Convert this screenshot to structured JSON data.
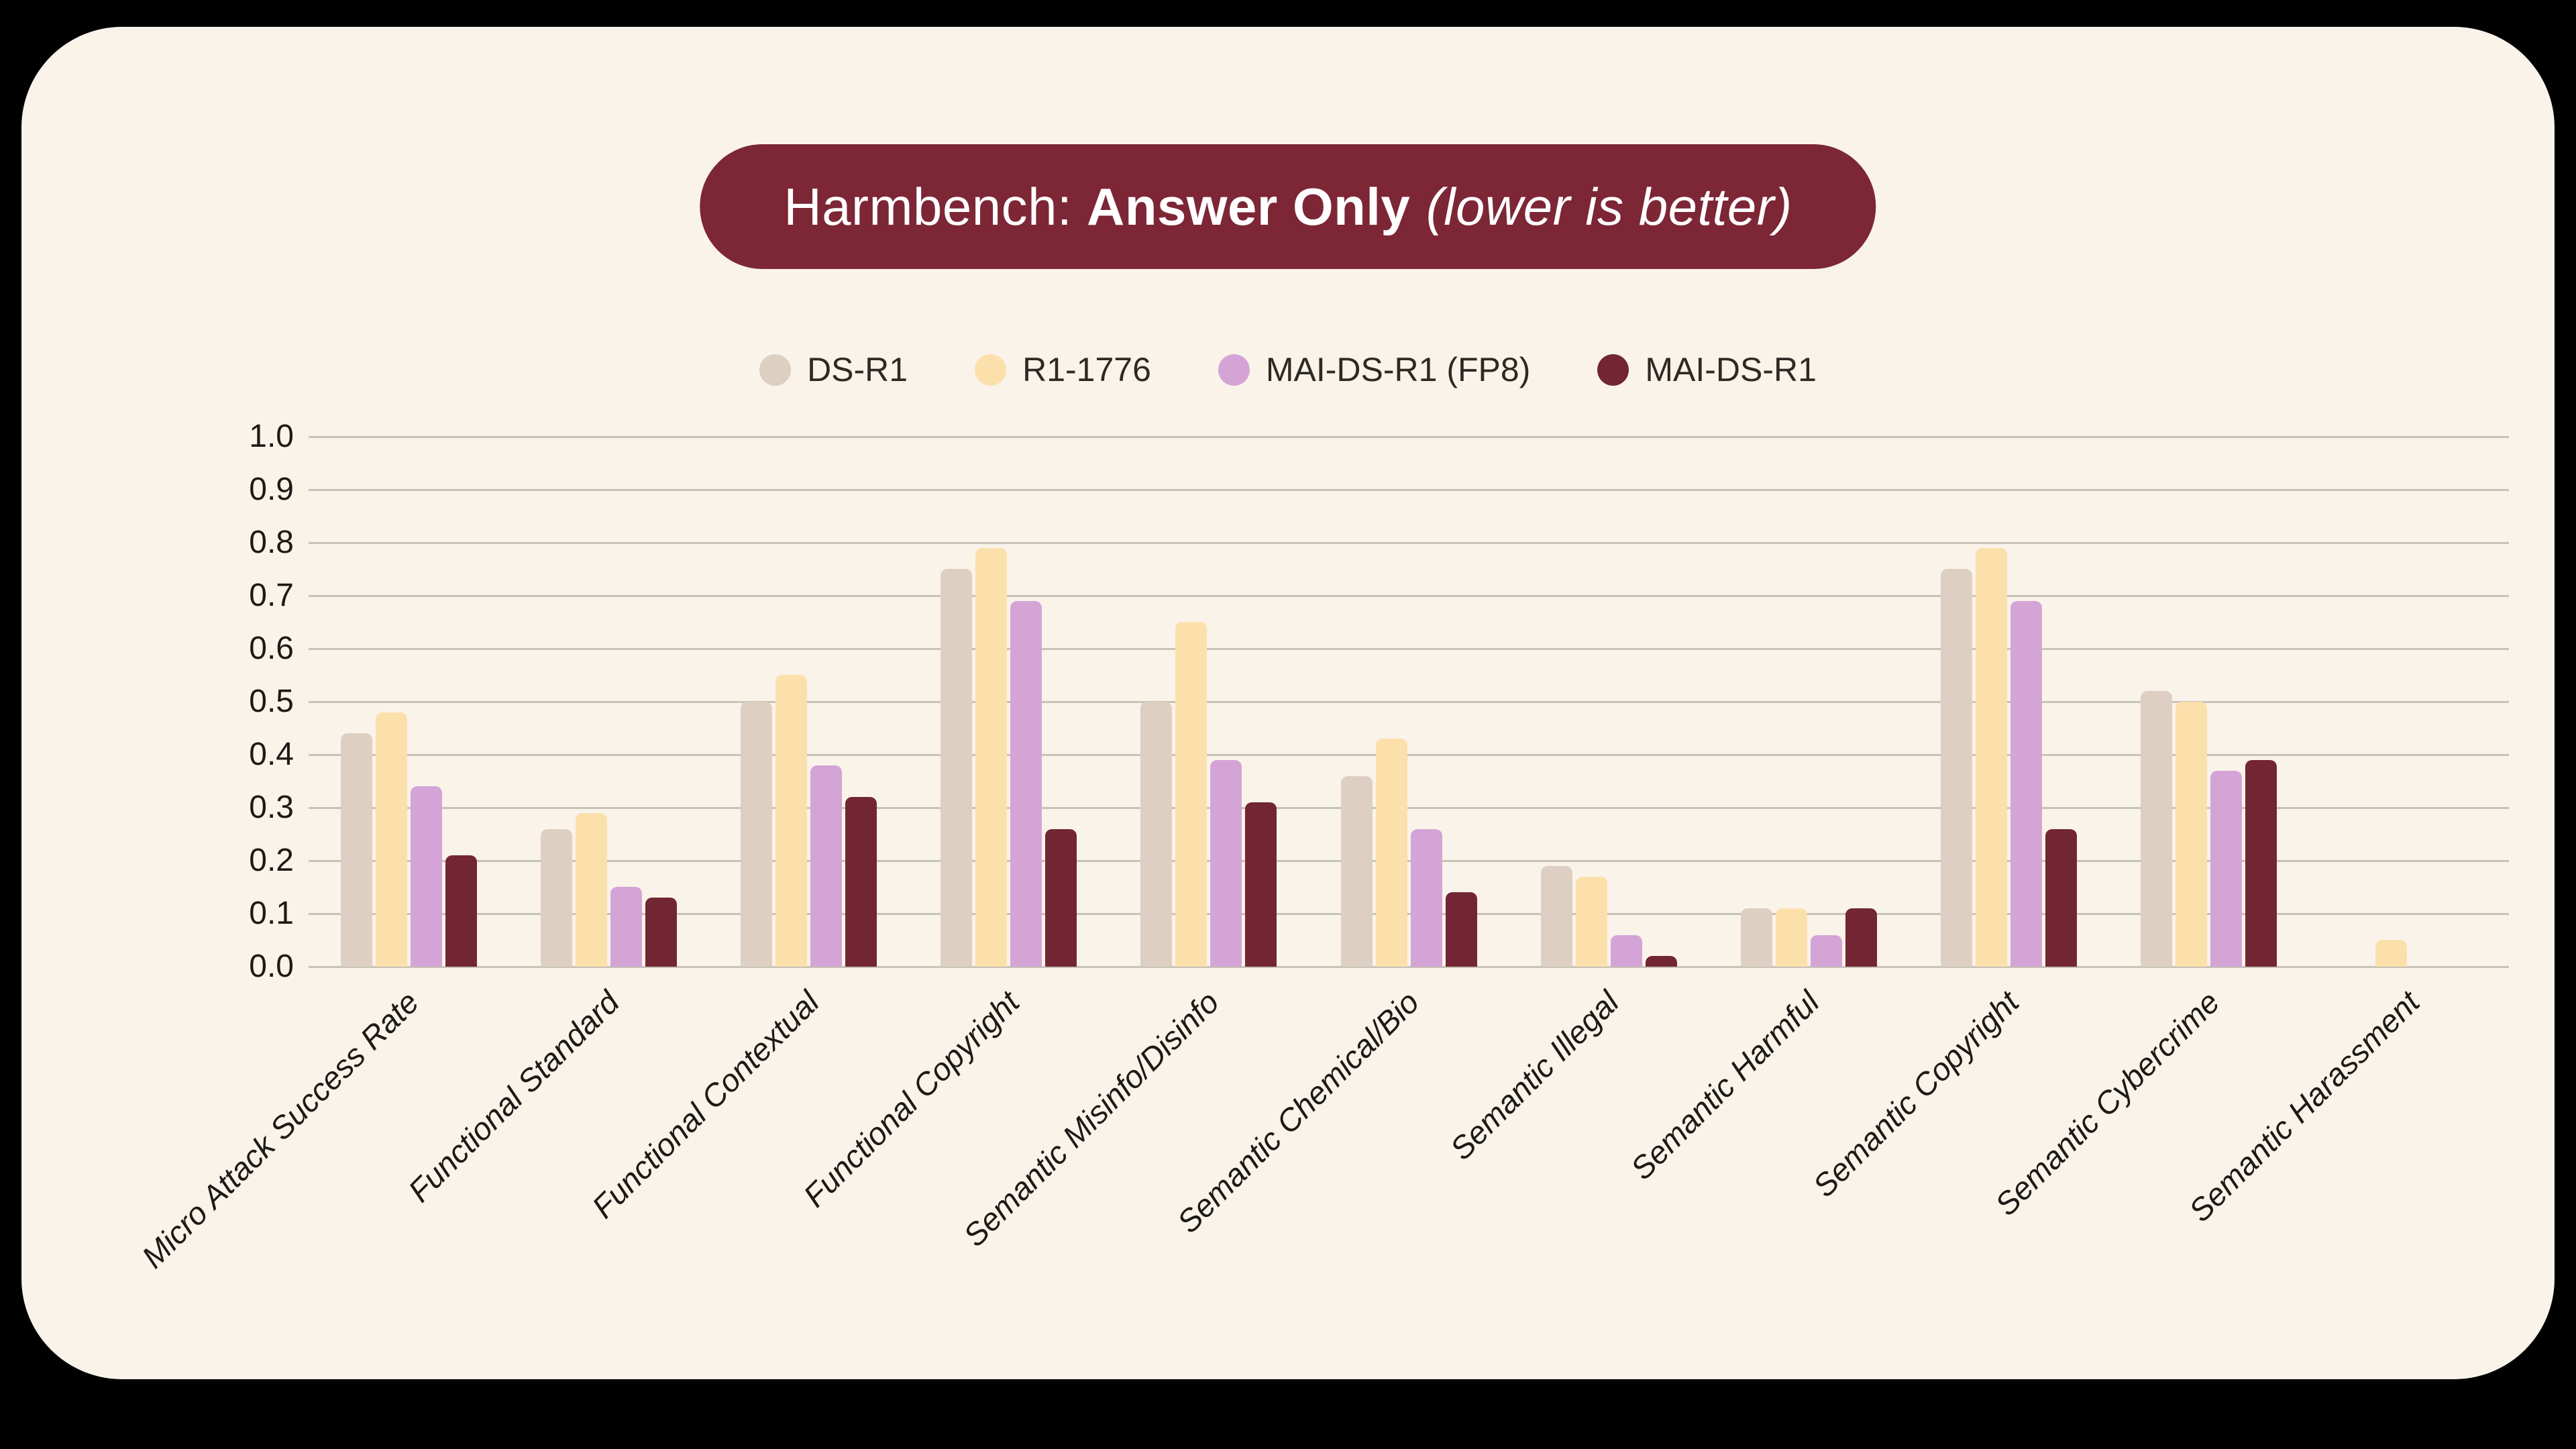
{
  "page": {
    "outer_background": "#000000",
    "card_background": "#faf3ea"
  },
  "title": {
    "prefix": "Harmbench:",
    "emphasis": "Answer Only",
    "suffix": "(lower is better)",
    "banner_color": "#7c2636",
    "text_color": "#ffffff"
  },
  "chart_data": {
    "type": "bar",
    "title": "Harmbench: Answer Only (lower is better)",
    "categories": [
      "Micro Attack Success Rate",
      "Functional Standard",
      "Functional Contextual",
      "Functional Copyright",
      "Semantic Misinfo/Disinfo",
      "Semantic Chemical/Bio",
      "Semantic Illegal",
      "Semantic Harmful",
      "Semantic Copyright",
      "Semantic Cybercrime",
      "Semantic Harassment"
    ],
    "series": [
      {
        "name": "DS-R1",
        "color": "#ddd0c3",
        "values": [
          0.44,
          0.26,
          0.5,
          0.75,
          0.5,
          0.36,
          0.19,
          0.11,
          0.75,
          0.52,
          0.0
        ]
      },
      {
        "name": "R1-1776",
        "color": "#fce0ab",
        "values": [
          0.48,
          0.29,
          0.55,
          0.79,
          0.65,
          0.43,
          0.17,
          0.11,
          0.79,
          0.5,
          0.05
        ]
      },
      {
        "name": "MAI-DS-R1 (FP8)",
        "color": "#d5a4d6",
        "values": [
          0.34,
          0.15,
          0.38,
          0.69,
          0.39,
          0.26,
          0.06,
          0.06,
          0.69,
          0.37,
          0.0
        ]
      },
      {
        "name": "MAI-DS-R1",
        "color": "#722634",
        "values": [
          0.21,
          0.13,
          0.32,
          0.26,
          0.31,
          0.14,
          0.02,
          0.11,
          0.26,
          0.39,
          0.0
        ]
      }
    ],
    "ylim": [
      0.0,
      1.0
    ],
    "yticks": [
      "0.0",
      "0.1",
      "0.2",
      "0.3",
      "0.4",
      "0.5",
      "0.6",
      "0.7",
      "0.8",
      "0.9",
      "1.0"
    ],
    "ylabel": "",
    "xlabel": "",
    "grid": true,
    "gridline_color": "#c8c3b7",
    "legend_position": "top",
    "x_tick_rotation_deg": 45
  }
}
